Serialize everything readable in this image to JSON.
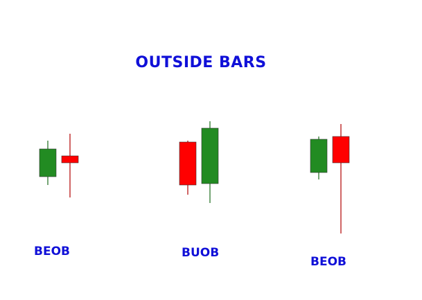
{
  "title": "OUTSIDE BARS",
  "colors": {
    "title": "#1010d8",
    "label": "#1010d8",
    "bullish_body": "#228b22",
    "bullish_wick": "#1a6b1a",
    "bearish_body": "#ff0000",
    "bearish_wick": "#b00000",
    "body_outline": "#333333"
  },
  "patterns": [
    {
      "label": "BEOB",
      "candles": [
        {
          "direction": "up",
          "open": 50,
          "close": 70,
          "high": 76,
          "low": 44
        },
        {
          "direction": "down",
          "open": 65,
          "close": 60,
          "high": 81,
          "low": 35
        }
      ]
    },
    {
      "label": "BUOB",
      "candles": [
        {
          "direction": "down",
          "open": 75,
          "close": 44,
          "high": 76,
          "low": 37
        },
        {
          "direction": "up",
          "open": 45,
          "close": 85,
          "high": 90,
          "low": 31
        }
      ]
    },
    {
      "label": "BEOB",
      "candles": [
        {
          "direction": "up",
          "open": 53,
          "close": 77,
          "high": 79,
          "low": 48
        },
        {
          "direction": "down",
          "open": 79,
          "close": 60,
          "high": 88,
          "low": 9
        }
      ]
    }
  ]
}
